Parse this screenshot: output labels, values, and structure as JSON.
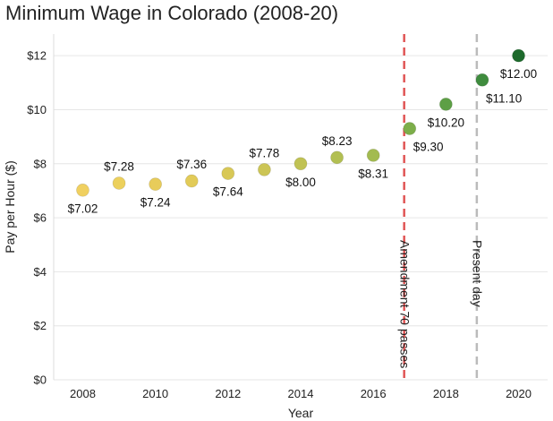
{
  "chart_data": {
    "type": "scatter",
    "title": "Minimum Wage in Colorado (2008-20)",
    "xlabel": "Year",
    "ylabel": "Pay per Hour ($)",
    "xlim": [
      2007.2,
      2020.8
    ],
    "ylim": [
      0,
      12.8
    ],
    "x_ticks": [
      2008,
      2010,
      2012,
      2014,
      2016,
      2018,
      2020
    ],
    "y_ticks": [
      0,
      2,
      4,
      6,
      8,
      10,
      12
    ],
    "y_tick_labels": [
      "$0",
      "$2",
      "$4",
      "$6",
      "$8",
      "$10",
      "$12"
    ],
    "grid": "horizontal",
    "points": [
      {
        "x": 2008,
        "y": 7.02,
        "label": "$7.02",
        "label_pos": "below",
        "color": "#f0d060"
      },
      {
        "x": 2009,
        "y": 7.28,
        "label": "$7.28",
        "label_pos": "above",
        "color": "#ecd05c"
      },
      {
        "x": 2010,
        "y": 7.24,
        "label": "$7.24",
        "label_pos": "below",
        "color": "#e8cc5a"
      },
      {
        "x": 2011,
        "y": 7.36,
        "label": "$7.36",
        "label_pos": "above",
        "color": "#e2cb58"
      },
      {
        "x": 2012,
        "y": 7.64,
        "label": "$7.64",
        "label_pos": "below",
        "color": "#d8c856"
      },
      {
        "x": 2013,
        "y": 7.78,
        "label": "$7.78",
        "label_pos": "above",
        "color": "#ccc555"
      },
      {
        "x": 2014,
        "y": 8.0,
        "label": "$8.00",
        "label_pos": "below",
        "color": "#c0c254"
      },
      {
        "x": 2015,
        "y": 8.23,
        "label": "$8.23",
        "label_pos": "above",
        "color": "#b2bf52"
      },
      {
        "x": 2016,
        "y": 8.31,
        "label": "$8.31",
        "label_pos": "below",
        "color": "#a3bb50"
      },
      {
        "x": 2017,
        "y": 9.3,
        "label": "$9.30",
        "label_pos": "below-right",
        "color": "#7cae4a"
      },
      {
        "x": 2018,
        "y": 10.2,
        "label": "$10.20",
        "label_pos": "below",
        "color": "#5d9f45"
      },
      {
        "x": 2019,
        "y": 11.1,
        "label": "$11.10",
        "label_pos": "below-right",
        "color": "#3f8c3e"
      },
      {
        "x": 2020,
        "y": 12.0,
        "label": "$12.00",
        "label_pos": "below",
        "color": "#1e6a2c"
      }
    ],
    "annotations": [
      {
        "x": 2016.85,
        "text": "Amendment 70 passes",
        "color": "#e05555",
        "style": "dashed"
      },
      {
        "x": 2018.85,
        "text": "Present day",
        "color": "#bbbbbb",
        "style": "dashed"
      }
    ]
  }
}
